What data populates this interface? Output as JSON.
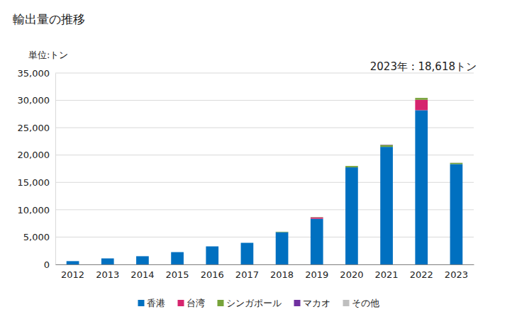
{
  "chart_data": {
    "type": "bar",
    "title": "輸出量の推移",
    "y_label": "単位:トン",
    "annotation": "2023年 : 18,618トン",
    "stacked": true,
    "grid": true,
    "legend": "bottom",
    "categories": [
      "2012",
      "2013",
      "2014",
      "2015",
      "2016",
      "2017",
      "2018",
      "2019",
      "2020",
      "2021",
      "2022",
      "2023"
    ],
    "series": [
      {
        "name": "香港",
        "color": "#0070c0",
        "values": [
          600,
          1100,
          1500,
          2250,
          3300,
          3950,
          5900,
          8350,
          17750,
          21500,
          28200,
          18350
        ]
      },
      {
        "name": "台湾",
        "color": "#d6246e",
        "values": [
          0,
          0,
          0,
          0,
          0,
          0,
          0,
          250,
          0,
          0,
          1900,
          0
        ]
      },
      {
        "name": "シンガポール",
        "color": "#77a33a",
        "values": [
          0,
          0,
          0,
          0,
          0,
          0,
          80,
          50,
          250,
          350,
          350,
          220
        ]
      },
      {
        "name": "マカオ",
        "color": "#7030a0",
        "values": [
          0,
          0,
          0,
          0,
          0,
          0,
          0,
          0,
          0,
          50,
          0,
          0
        ]
      },
      {
        "name": "その他",
        "color": "#bfbfbf",
        "values": [
          0,
          0,
          0,
          0,
          0,
          0,
          0,
          0,
          0,
          0,
          0,
          48
        ]
      }
    ],
    "ylim": [
      0,
      35000
    ],
    "yticks": [
      0,
      {
        "value": 5000,
        "label": "5,000"
      },
      {
        "value": 10000,
        "label": "10,000"
      },
      {
        "value": 15000,
        "label": "15,000"
      },
      {
        "value": 20000,
        "label": "20,000"
      },
      {
        "value": 25000,
        "label": "25,000"
      },
      {
        "value": 30000,
        "label": "30,000"
      },
      {
        "value": 35000,
        "label": "35,000"
      }
    ]
  }
}
